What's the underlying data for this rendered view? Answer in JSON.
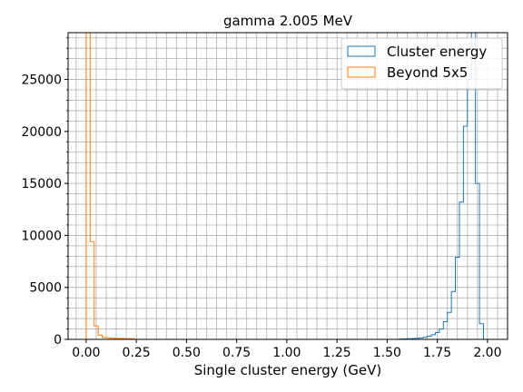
{
  "chart_data": {
    "type": "histogram",
    "title": "gamma 2.005 MeV",
    "xlabel": "Single cluster energy (GeV)",
    "ylabel": "",
    "xlim": [
      -0.09,
      2.1
    ],
    "ylim": [
      0,
      29500
    ],
    "xticks": [
      0.0,
      0.25,
      0.5,
      0.75,
      1.0,
      1.25,
      1.5,
      1.75,
      2.0
    ],
    "xtick_labels": [
      "0.00",
      "0.25",
      "0.50",
      "0.75",
      "1.00",
      "1.25",
      "1.50",
      "1.75",
      "2.00"
    ],
    "yticks": [
      0,
      5000,
      10000,
      15000,
      20000,
      25000
    ],
    "ytick_labels": [
      "0",
      "5000",
      "10000",
      "15000",
      "20000",
      "25000"
    ],
    "grid": true,
    "minor_grid": true,
    "legend_position": "top-right",
    "bin_width": 0.02,
    "series": [
      {
        "name": "Cluster energy",
        "color": "#1f77b4",
        "bin_start": 1.56,
        "counts": [
          30,
          40,
          60,
          80,
          100,
          140,
          200,
          300,
          450,
          650,
          1000,
          1700,
          2600,
          4600,
          7900,
          13200,
          20500,
          25000,
          29500,
          15000,
          1500,
          0
        ]
      },
      {
        "name": "Beyond 5x5",
        "color": "#ff7f0e",
        "bin_start": 0.0,
        "counts": [
          29500,
          9400,
          1300,
          400,
          200,
          150,
          120,
          100,
          90,
          80,
          70,
          60,
          0
        ]
      }
    ]
  }
}
